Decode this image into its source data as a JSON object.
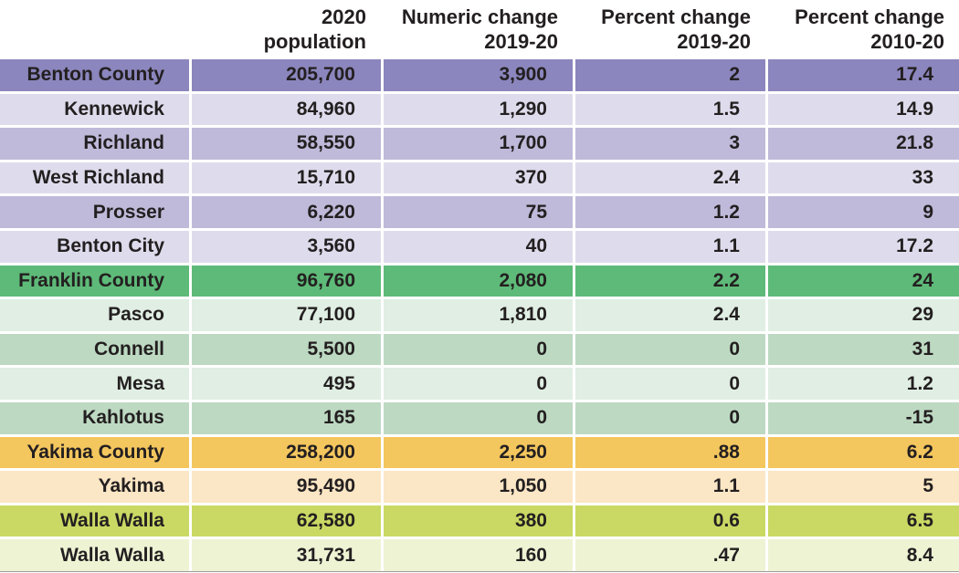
{
  "chart_data": {
    "type": "table",
    "description": "Population change table for southeastern Washington counties and cities",
    "column_headers": [
      [
        "",
        ""
      ],
      [
        "2020",
        "population"
      ],
      [
        "Numeric change",
        "2019-20"
      ],
      [
        "Percent change",
        "2019-20"
      ],
      [
        "Percent change",
        "2010-20"
      ]
    ],
    "rows": [
      {
        "location": "Benton County",
        "population": "205,700",
        "numeric_change_2019_20": "3,900",
        "percent_change_2019_20": "2",
        "percent_change_2010_20": "17.4",
        "shade": "purple-dark"
      },
      {
        "location": "Kennewick",
        "population": "84,960",
        "numeric_change_2019_20": "1,290",
        "percent_change_2019_20": "1.5",
        "percent_change_2010_20": "14.9",
        "shade": "purple-light"
      },
      {
        "location": "Richland",
        "population": "58,550",
        "numeric_change_2019_20": "1,700",
        "percent_change_2019_20": "3",
        "percent_change_2010_20": "21.8",
        "shade": "purple-medium"
      },
      {
        "location": "West Richland",
        "population": "15,710",
        "numeric_change_2019_20": "370",
        "percent_change_2019_20": "2.4",
        "percent_change_2010_20": "33",
        "shade": "purple-light"
      },
      {
        "location": "Prosser",
        "population": "6,220",
        "numeric_change_2019_20": "75",
        "percent_change_2019_20": "1.2",
        "percent_change_2010_20": "9",
        "shade": "purple-medium"
      },
      {
        "location": "Benton City",
        "population": "3,560",
        "numeric_change_2019_20": "40",
        "percent_change_2019_20": "1.1",
        "percent_change_2010_20": "17.2",
        "shade": "purple-light"
      },
      {
        "location": "Franklin County",
        "population": "96,760",
        "numeric_change_2019_20": "2,080",
        "percent_change_2019_20": "2.2",
        "percent_change_2010_20": "24",
        "shade": "green-dark"
      },
      {
        "location": "Pasco",
        "population": "77,100",
        "numeric_change_2019_20": "1,810",
        "percent_change_2019_20": "2.4",
        "percent_change_2010_20": "29",
        "shade": "green-light"
      },
      {
        "location": "Connell",
        "population": "5,500",
        "numeric_change_2019_20": "0",
        "percent_change_2019_20": "0",
        "percent_change_2010_20": "31",
        "shade": "green-medium"
      },
      {
        "location": "Mesa",
        "population": "495",
        "numeric_change_2019_20": "0",
        "percent_change_2019_20": "0",
        "percent_change_2010_20": "1.2",
        "shade": "green-light"
      },
      {
        "location": "Kahlotus",
        "population": "165",
        "numeric_change_2019_20": "0",
        "percent_change_2019_20": "0",
        "percent_change_2010_20": "-15",
        "shade": "green-medium"
      },
      {
        "location": "Yakima County",
        "population": "258,200",
        "numeric_change_2019_20": "2,250",
        "percent_change_2019_20": ".88",
        "percent_change_2010_20": "6.2",
        "shade": "orange-dark"
      },
      {
        "location": "Yakima",
        "population": "95,490",
        "numeric_change_2019_20": "1,050",
        "percent_change_2019_20": "1.1",
        "percent_change_2010_20": "5",
        "shade": "orange-light"
      },
      {
        "location": "Walla Walla",
        "population": "62,580",
        "numeric_change_2019_20": "380",
        "percent_change_2019_20": "0.6",
        "percent_change_2010_20": "6.5",
        "shade": "yellowgreen-dark"
      },
      {
        "location": "Walla Walla",
        "population": "31,731",
        "numeric_change_2019_20": "160",
        "percent_change_2019_20": ".47",
        "percent_change_2010_20": "8.4",
        "shade": "yellowgreen-light"
      }
    ],
    "palette": {
      "purple-dark": "#8b86bd",
      "purple-medium": "#bfbad9",
      "purple-light": "#dedcec",
      "green-dark": "#5eba78",
      "green-medium": "#bdd9c2",
      "green-light": "#e0eee3",
      "orange-dark": "#f3c65e",
      "orange-light": "#fbe6c5",
      "yellowgreen-dark": "#c9d964",
      "yellowgreen-light": "#eef3d4"
    },
    "text_color": "#231f20",
    "layout": {
      "header_align": "right",
      "cell_align": "right",
      "grid": "white 3px gaps between cells"
    }
  }
}
